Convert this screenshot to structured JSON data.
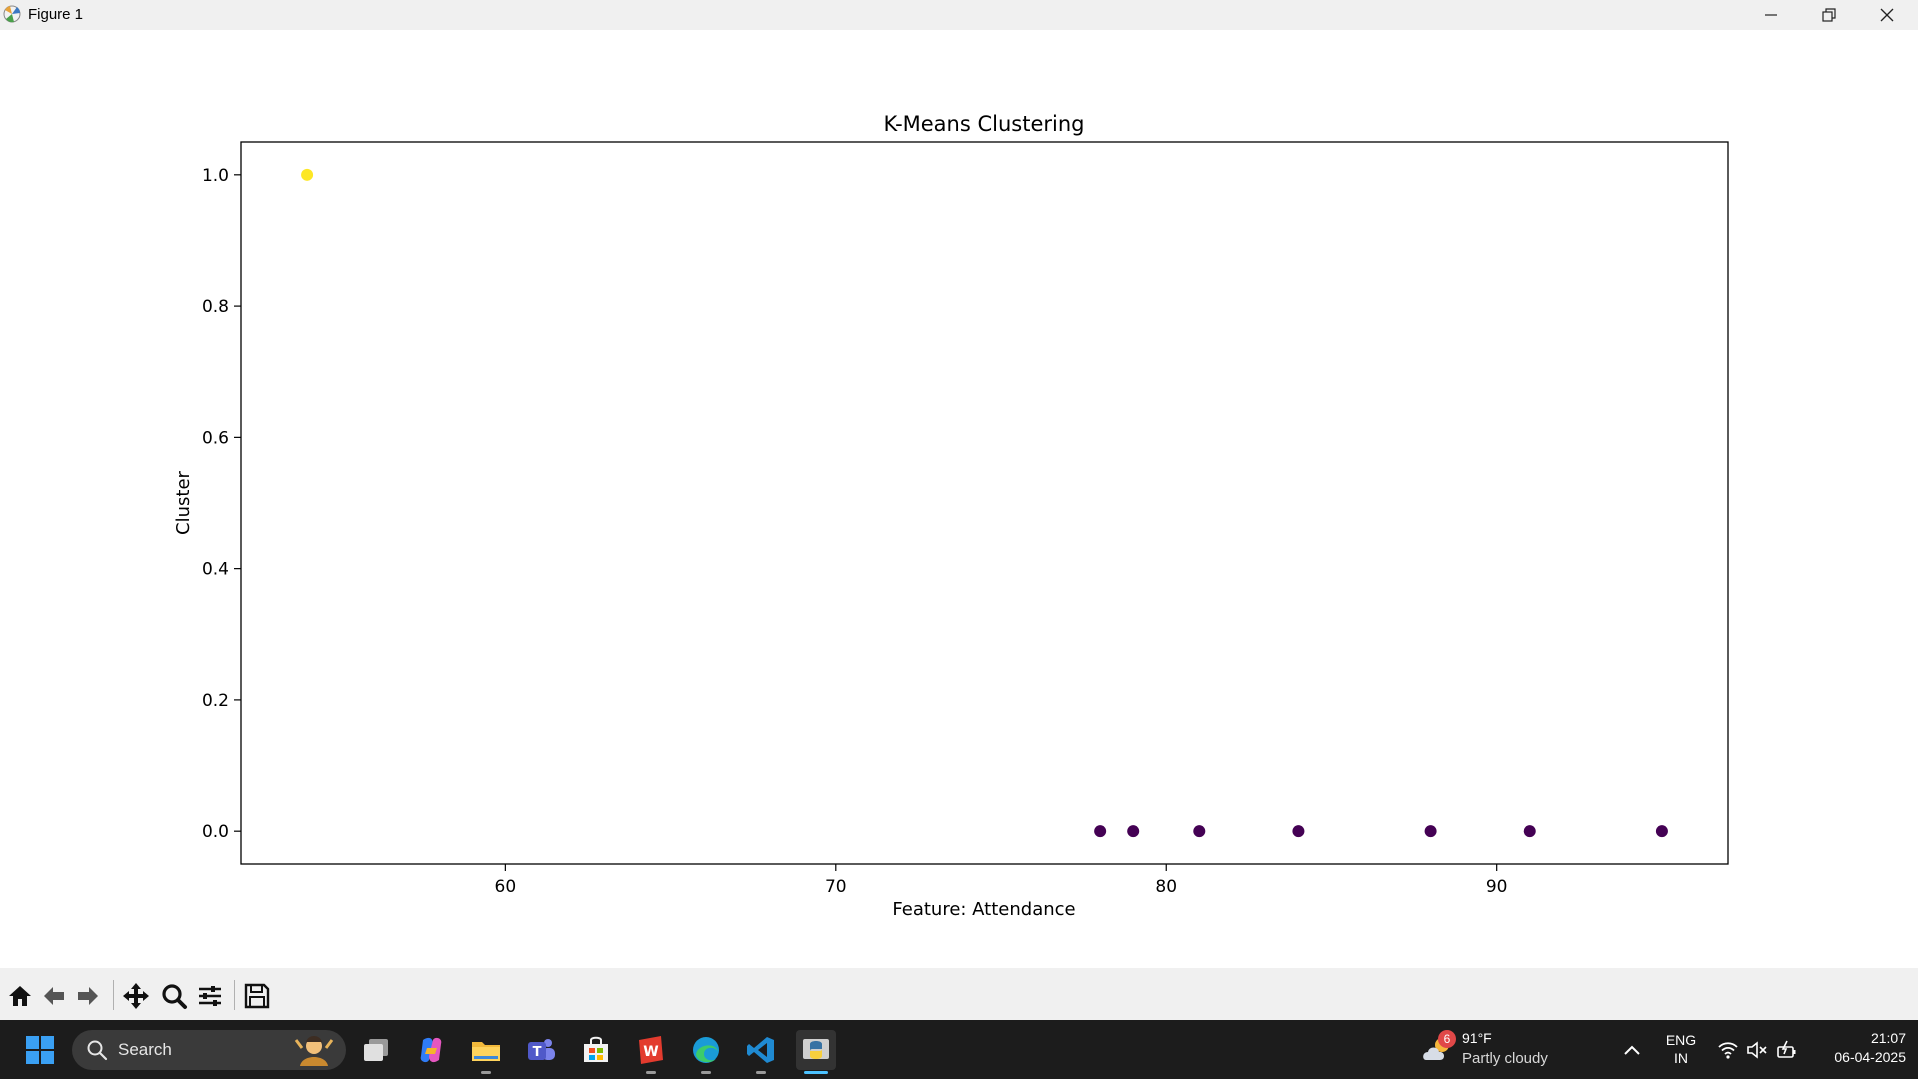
{
  "window": {
    "title": "Figure 1"
  },
  "chart_data": {
    "type": "scatter",
    "title": "K-Means Clustering",
    "xlabel": "Feature: Attendance",
    "ylabel": "Cluster",
    "xlim": [
      52,
      97
    ],
    "ylim": [
      -0.05,
      1.05
    ],
    "xticks": [
      60,
      70,
      80,
      90
    ],
    "xtick_labels": [
      "60",
      "70",
      "80",
      "90"
    ],
    "yticks": [
      0.0,
      0.2,
      0.4,
      0.6,
      0.8,
      1.0
    ],
    "ytick_labels": [
      "0.0",
      "0.2",
      "0.4",
      "0.6",
      "0.8",
      "1.0"
    ],
    "grid": false,
    "points": [
      {
        "x": 54,
        "y": 1,
        "color": "#fde725"
      },
      {
        "x": 78,
        "y": 0,
        "color": "#440154"
      },
      {
        "x": 79,
        "y": 0,
        "color": "#440154"
      },
      {
        "x": 81,
        "y": 0,
        "color": "#440154"
      },
      {
        "x": 84,
        "y": 0,
        "color": "#440154"
      },
      {
        "x": 88,
        "y": 0,
        "color": "#440154"
      },
      {
        "x": 91,
        "y": 0,
        "color": "#440154"
      },
      {
        "x": 95,
        "y": 0,
        "color": "#440154"
      }
    ]
  },
  "toolbar": {
    "buttons": [
      "home-icon",
      "back-arrow-icon",
      "forward-arrow-icon",
      "pan-icon",
      "zoom-icon",
      "configure-subplots-icon",
      "save-icon"
    ]
  },
  "taskbar": {
    "search_label": "Search",
    "weather_badge": "6",
    "weather_temp": "91°F",
    "weather_condition": "Partly cloudy",
    "language_top": "ENG",
    "language_bottom": "IN",
    "time": "21:07",
    "date": "06-04-2025"
  }
}
